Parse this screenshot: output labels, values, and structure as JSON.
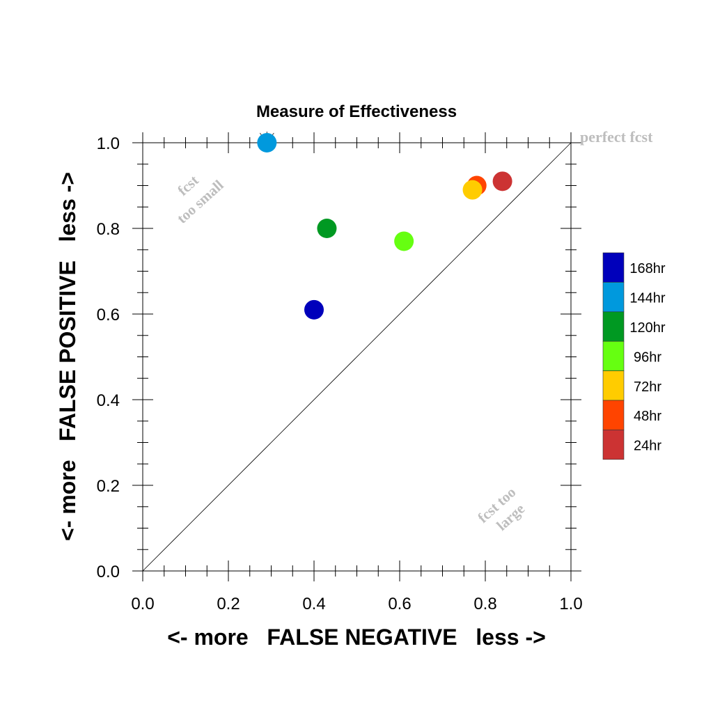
{
  "chart_data": {
    "type": "scatter",
    "title": "Measure of Effectiveness",
    "xlabel": "<- more   FALSE NEGATIVE   less ->",
    "ylabel": "<- more   FALSE POSITIVE   less ->",
    "xlim": [
      0.0,
      1.0
    ],
    "ylim": [
      0.0,
      1.0
    ],
    "xticks": [
      "0.0",
      "0.2",
      "0.4",
      "0.6",
      "0.8",
      "1.0"
    ],
    "yticks": [
      "0.0",
      "0.2",
      "0.4",
      "0.6",
      "0.8",
      "1.0"
    ],
    "grid": false,
    "reference_line": "diagonal y = x",
    "annotations": {
      "perfect": "perfect fcst",
      "too_small_1": "fcst",
      "too_small_2": "too small",
      "too_large_1": "fcst too",
      "too_large_2": "large"
    },
    "legend": {
      "placement": "right",
      "entries": [
        {
          "label": "168hr",
          "color": "#0000bb"
        },
        {
          "label": "144hr",
          "color": "#0099dd"
        },
        {
          "label": "120hr",
          "color": "#009922"
        },
        {
          "label": "96hr",
          "color": "#66ff11"
        },
        {
          "label": "72hr",
          "color": "#ffcc00"
        },
        {
          "label": "48hr",
          "color": "#ff4400"
        },
        {
          "label": "24hr",
          "color": "#cc3333"
        }
      ]
    },
    "series": [
      {
        "name": "168hr",
        "color": "#0000bb",
        "x": 0.4,
        "y": 0.61
      },
      {
        "name": "144hr",
        "color": "#0099dd",
        "x": 0.29,
        "y": 1.0
      },
      {
        "name": "120hr",
        "color": "#009922",
        "x": 0.43,
        "y": 0.8
      },
      {
        "name": "96hr",
        "color": "#66ff11",
        "x": 0.61,
        "y": 0.77
      },
      {
        "name": "72hr",
        "color": "#ffcc00",
        "x": 0.77,
        "y": 0.89
      },
      {
        "name": "48hr",
        "color": "#ff4400",
        "x": 0.78,
        "y": 0.9
      },
      {
        "name": "24hr",
        "color": "#cc3333",
        "x": 0.84,
        "y": 0.91
      }
    ]
  }
}
